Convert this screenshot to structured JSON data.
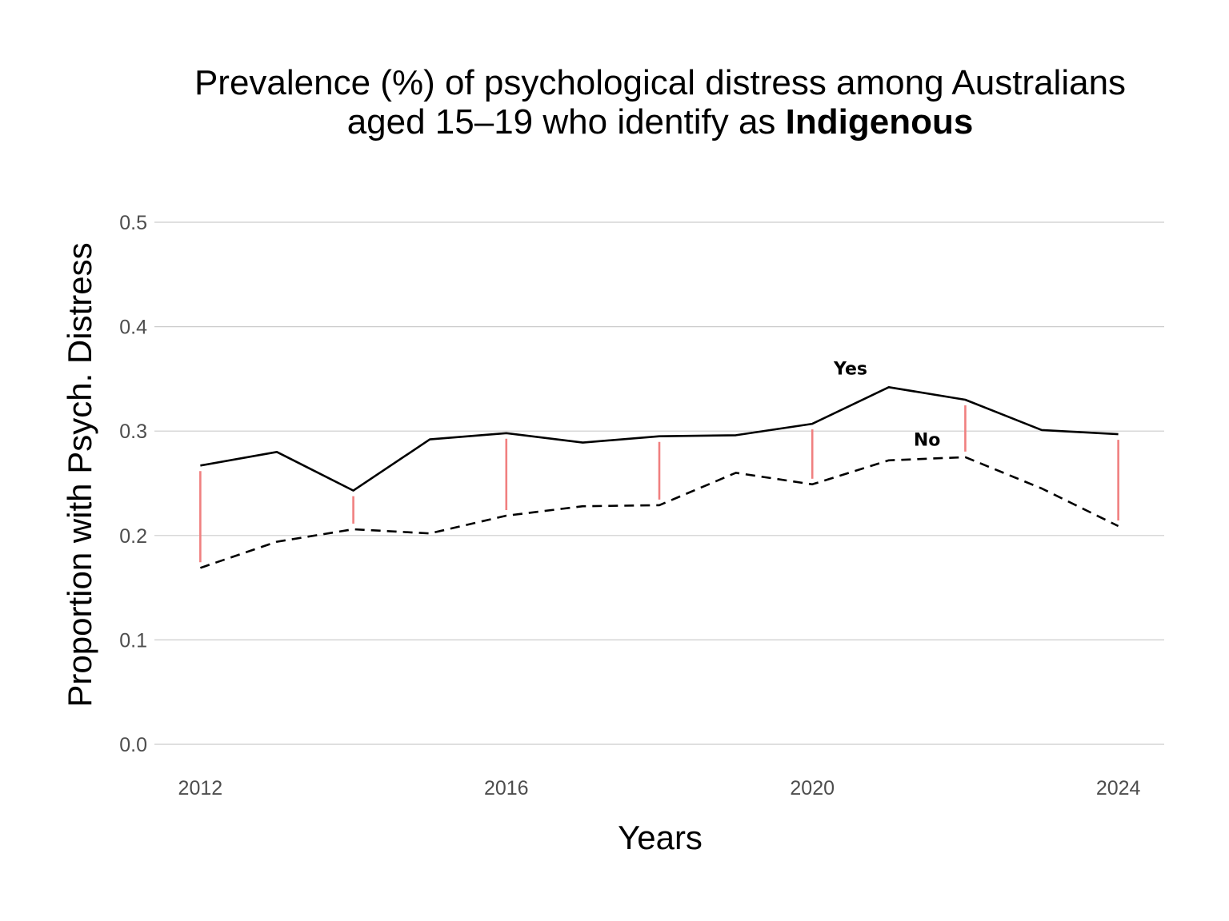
{
  "chart_data": {
    "type": "line",
    "title_line1": "Prevalence (%) of psychological distress among Australians",
    "title_line2_prefix": "aged 15–19 who identify as ",
    "title_line2_bold": "Indigenous",
    "xlabel": "Years",
    "ylabel": "Proportion with Psych. Distress",
    "ylim": [
      0,
      0.5
    ],
    "xlim": [
      2011.4,
      2024.6
    ],
    "yticks": [
      0.0,
      0.1,
      0.2,
      0.3,
      0.4,
      0.5
    ],
    "ytick_labels": [
      "0.0",
      "0.1",
      "0.2",
      "0.3",
      "0.4",
      "0.5"
    ],
    "xticks": [
      2012,
      2016,
      2020,
      2024
    ],
    "xtick_labels": [
      "2012",
      "2016",
      "2020",
      "2024"
    ],
    "grid": "horizontal",
    "legend": "none",
    "x": [
      2012,
      2013,
      2014,
      2015,
      2016,
      2017,
      2018,
      2019,
      2020,
      2021,
      2022,
      2023,
      2024
    ],
    "series": [
      {
        "name": "Yes",
        "line_style": "solid",
        "color": "#000000",
        "values": [
          0.267,
          0.28,
          0.243,
          0.292,
          0.298,
          0.289,
          0.295,
          0.296,
          0.307,
          0.342,
          0.33,
          0.301,
          0.297
        ]
      },
      {
        "name": "No",
        "line_style": "dashed",
        "color": "#000000",
        "values": [
          0.169,
          0.194,
          0.206,
          0.202,
          0.219,
          0.228,
          0.229,
          0.26,
          0.249,
          0.272,
          0.275,
          0.245,
          0.209
        ]
      }
    ],
    "series_labels": [
      {
        "text": "Yes",
        "x": 2020.5,
        "y": 0.354
      },
      {
        "text": "No",
        "x": 2021.5,
        "y": 0.286
      }
    ],
    "gap_segments": {
      "color": "#f08080",
      "years": [
        2012,
        2014,
        2016,
        2018,
        2020,
        2022,
        2024
      ]
    }
  }
}
